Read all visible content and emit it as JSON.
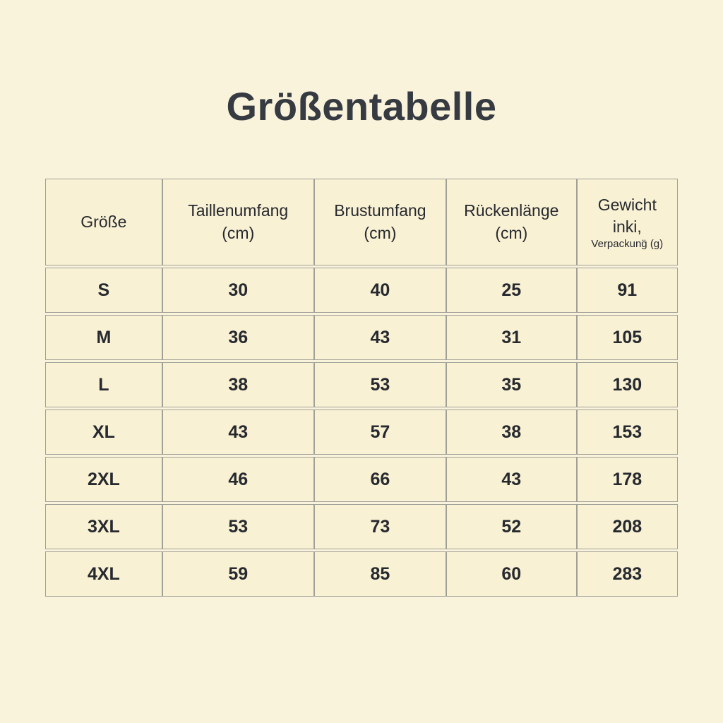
{
  "title": "Größentabelle",
  "colors": {
    "background": "#faf3db",
    "cell_background": "#f9f1d4",
    "border": "#a0a097",
    "title_text": "#363b42",
    "cell_text": "#26292e"
  },
  "header": {
    "col1": {
      "line1": "Größe"
    },
    "col2": {
      "line1": "Taillenumfang",
      "line2": "(cm)"
    },
    "col3": {
      "line1": "Brustumfang",
      "line2": "(cm)"
    },
    "col4": {
      "line1": "Rückenlänge",
      "line2": "(cm)"
    },
    "col5": {
      "line1": "Gewicht",
      "line2": "inki,",
      "small": "Verpackung̈ (g)"
    }
  },
  "chart_data": {
    "type": "table",
    "title": "Größentabelle",
    "columns": [
      "Größe",
      "Taillenumfang (cm)",
      "Brustumfang (cm)",
      "Rückenlänge (cm)",
      "Gewicht inki, Verpackung̈ (g)"
    ],
    "rows": [
      [
        "S",
        "30",
        "40",
        "25",
        "91"
      ],
      [
        "M",
        "36",
        "43",
        "31",
        "105"
      ],
      [
        "L",
        "38",
        "53",
        "35",
        "130"
      ],
      [
        "XL",
        "43",
        "57",
        "38",
        "153"
      ],
      [
        "2XL",
        "46",
        "66",
        "43",
        "178"
      ],
      [
        "3XL",
        "53",
        "73",
        "52",
        "208"
      ],
      [
        "4XL",
        "59",
        "85",
        "60",
        "283"
      ]
    ]
  }
}
